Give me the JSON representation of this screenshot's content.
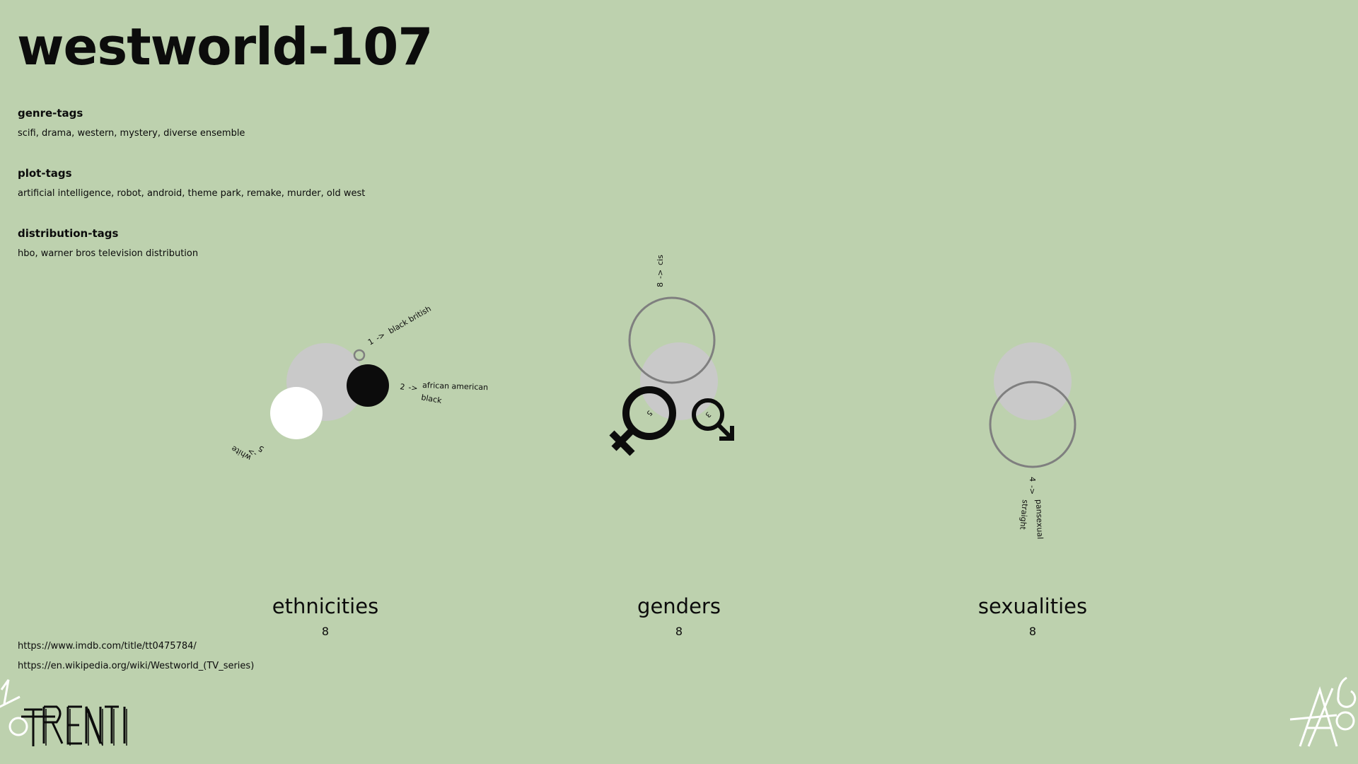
{
  "page": {
    "title": "westworld-107"
  },
  "tags": {
    "genre": {
      "heading": "genre-tags",
      "values": "scifi, drama, western, mystery, diverse ensemble"
    },
    "plot": {
      "heading": "plot-tags",
      "values": "artificial intelligence, robot, android, theme park, remake, murder, old west"
    },
    "distribution": {
      "heading": "distribution-tags",
      "values": "hbo, warner bros television distribution"
    }
  },
  "links": {
    "imdb": "https://www.imdb.com/title/tt0475784/",
    "wikipedia": "https://en.wikipedia.org/wiki/Westworld_(TV_series)"
  },
  "colors": {
    "background": "#bdd1ae",
    "total_circle": "#c9c9c9",
    "outline": "#7f7f7f",
    "ink": "#0c0c0c",
    "white": "#ffffff"
  },
  "sections": {
    "ethnicities": {
      "label": "ethnicities",
      "count": "8",
      "items": [
        {
          "count": "1",
          "arrow": "->",
          "name": "black british"
        },
        {
          "count": "2",
          "arrow": "->",
          "name": "african american",
          "name2": "black"
        },
        {
          "count": "5",
          "arrow": "->",
          "name": "white"
        }
      ]
    },
    "genders": {
      "label": "genders",
      "count": "8",
      "items": [
        {
          "count": "8",
          "arrow": "->",
          "name": "cis"
        },
        {
          "count": "5",
          "icon": "female-symbol-icon"
        },
        {
          "count": "3",
          "icon": "male-symbol-icon"
        }
      ]
    },
    "sexualities": {
      "label": "sexualities",
      "count": "8",
      "items": [
        {
          "count": "4",
          "arrow": "->",
          "name": "pansexual",
          "name2": "straight"
        }
      ]
    }
  },
  "logos": {
    "left": "trenti-logo",
    "right": "a6-logo"
  }
}
